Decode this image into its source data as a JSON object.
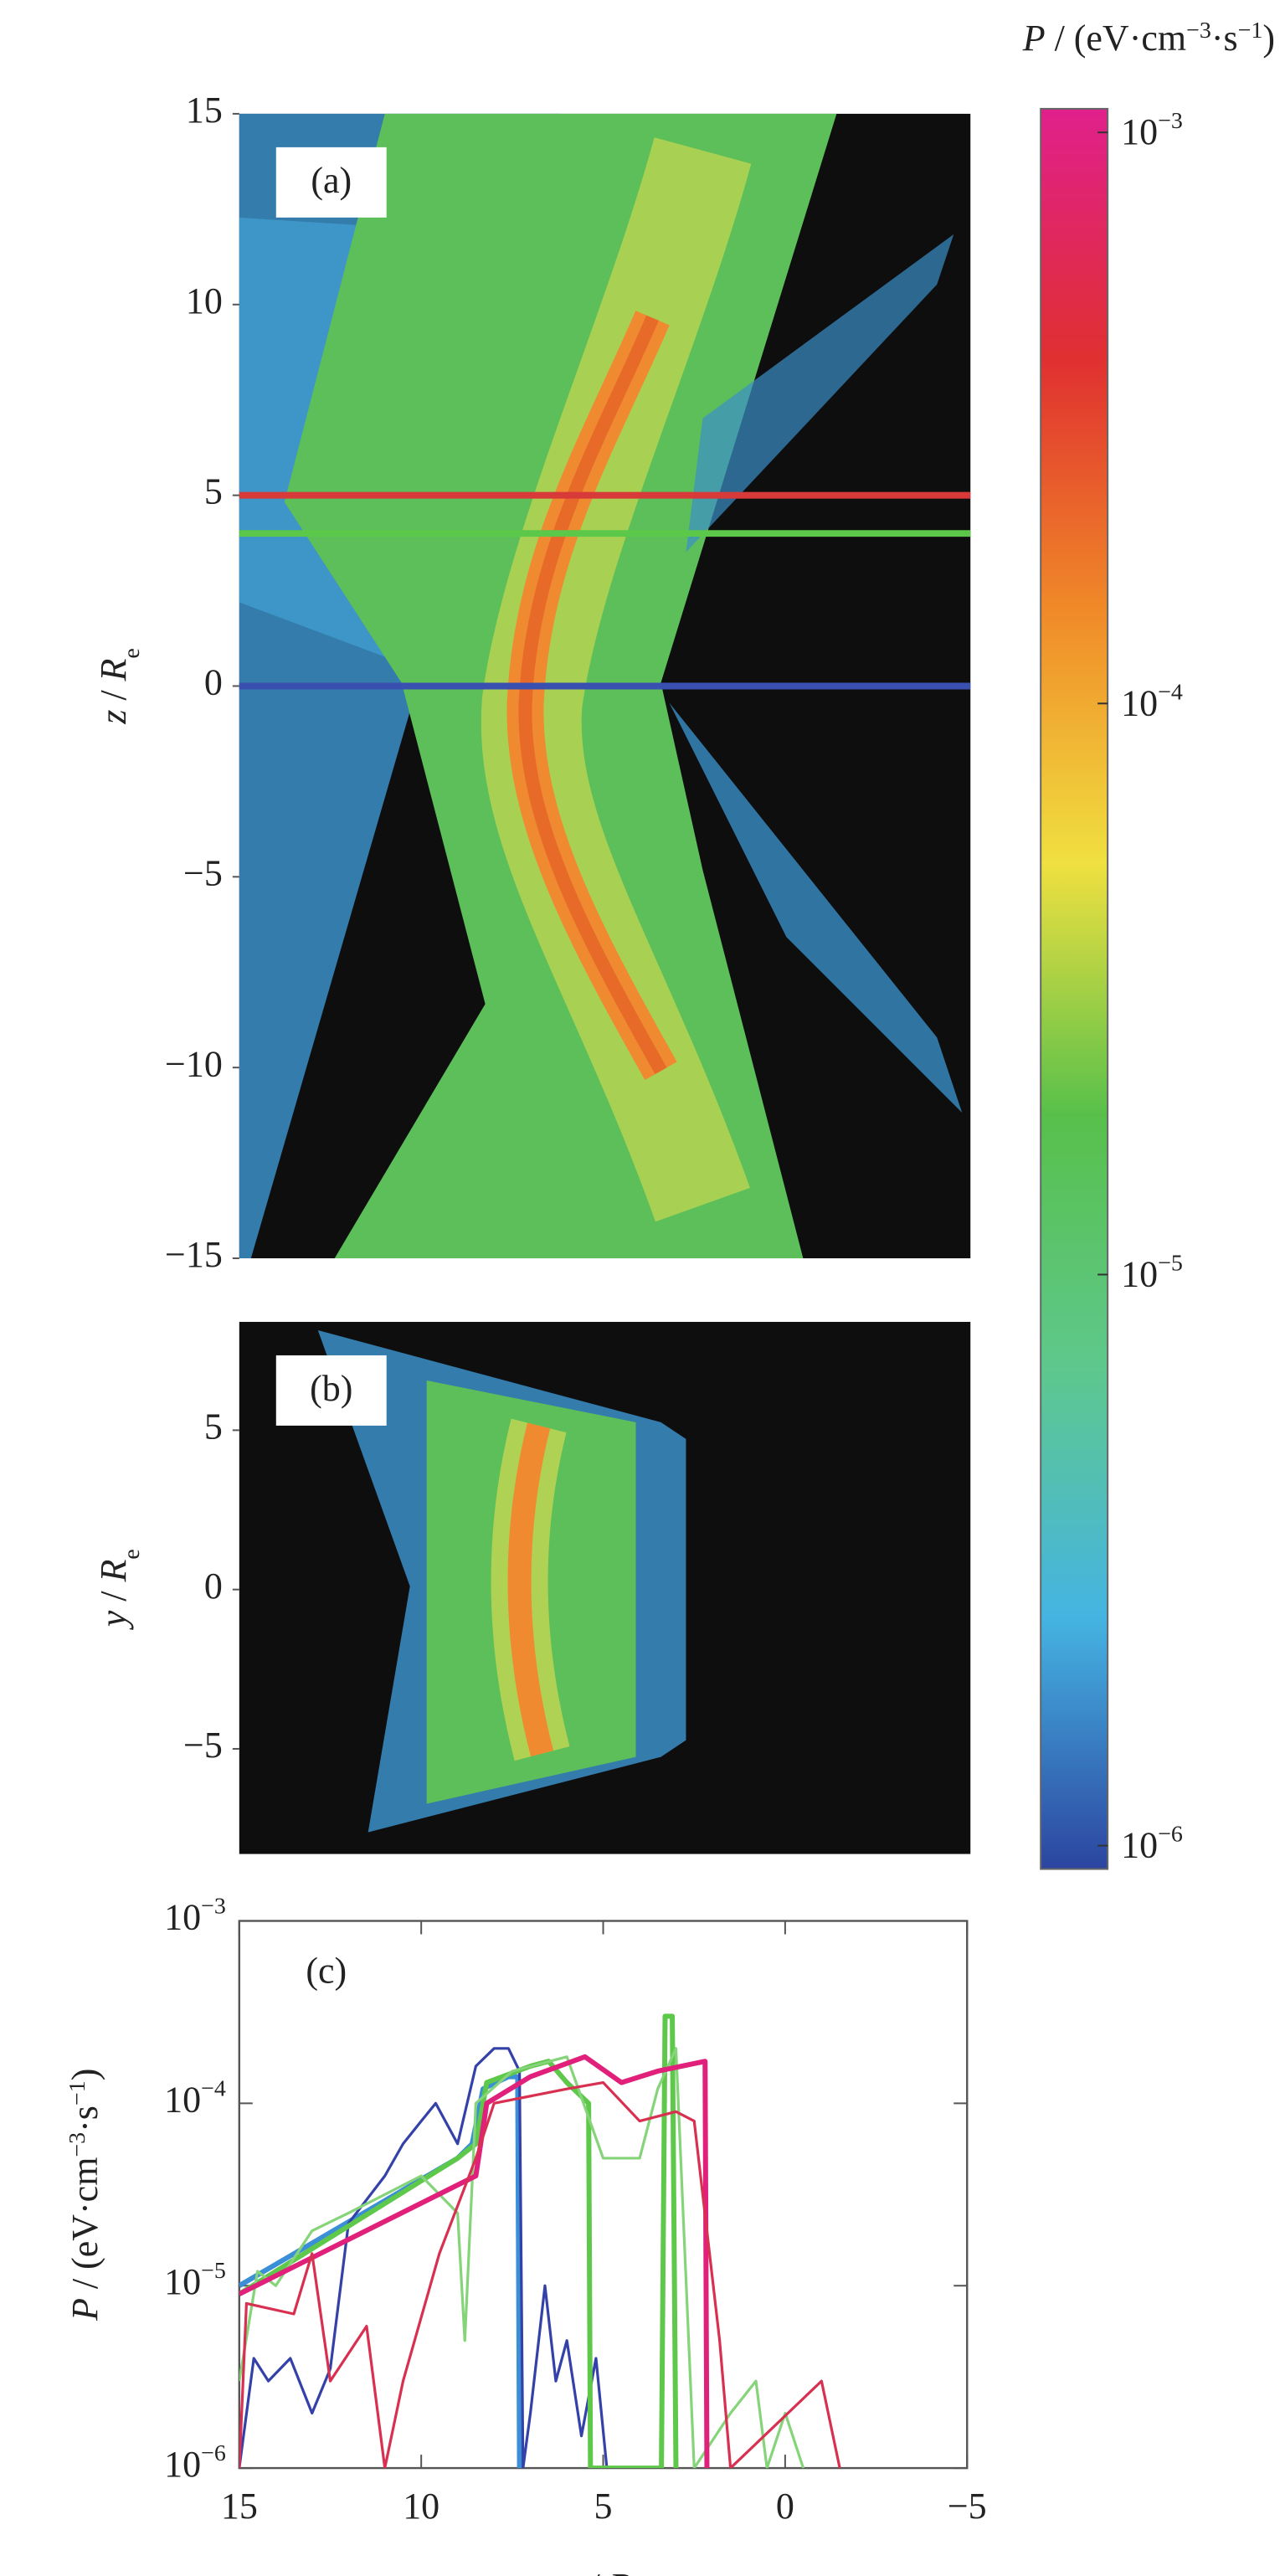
{
  "chart_data": [
    {
      "type": "heatmap",
      "label": "(a)",
      "ylabel": [
        "z",
        " / ",
        "R",
        "e"
      ],
      "xlim": [
        15,
        -5
      ],
      "ylim": [
        -15,
        15
      ],
      "yticks": [
        {
          "value": -15,
          "label": "−15"
        },
        {
          "value": -10,
          "label": "−10"
        },
        {
          "value": -5,
          "label": "−5"
        },
        0,
        5,
        10,
        15
      ],
      "cuts": [
        {
          "value": 5,
          "color": "#d83a3a"
        },
        {
          "value": 4,
          "color": "#5cc84a"
        },
        {
          "value": 0,
          "color": "#3a50b0"
        }
      ]
    },
    {
      "type": "heatmap",
      "label": "(b)",
      "ylabel": [
        "y",
        " / ",
        "R",
        "e"
      ],
      "xlim": [
        15,
        -5
      ],
      "ylim": [
        -8.3,
        8.4
      ],
      "yticks": [
        {
          "value": -5,
          "label": "−5"
        },
        0,
        5
      ]
    },
    {
      "type": "line",
      "label": "(c)",
      "ylabel": [
        "P",
        " / (eV·cm",
        "−3",
        "·s",
        "−1",
        ")"
      ],
      "xlabel": [
        "x",
        " / ",
        "R",
        "e"
      ],
      "xlim": [
        15,
        -5
      ],
      "xticks": [
        15,
        10,
        5,
        0,
        {
          "value": -5,
          "label": "−5"
        }
      ],
      "ylim": [
        1e-06,
        0.001
      ],
      "log": true,
      "yticks": [
        {
          "value": 1e-06,
          "label": [
            "10",
            "−6"
          ]
        },
        {
          "value": 1e-05,
          "label": [
            "10",
            "−5"
          ]
        },
        {
          "value": 0.0001,
          "label": [
            "10",
            "−4"
          ]
        },
        {
          "value": 0.001,
          "label": [
            "10",
            "−3"
          ]
        }
      ],
      "series": [
        {
          "color": "#3a8fd6",
          "linewidth": 3,
          "x": [
            15,
            9,
            8.6,
            8.3,
            7.6,
            7.35,
            7.3
          ],
          "values": [
            1e-05,
            5e-05,
            6e-05,
            0.00012,
            0.00014,
            0.00014,
            1e-06
          ]
        },
        {
          "color": "#3441a8",
          "linewidth": 1.6,
          "x": [
            15,
            14.6,
            14.2,
            13.6,
            13,
            12.5,
            12,
            11,
            10.5,
            10,
            9.6,
            9,
            8.5,
            8,
            7.6,
            7.3,
            7.2,
            7,
            6.6,
            6.3,
            6,
            5.6,
            5.2,
            4.9
          ],
          "values": [
            1e-06,
            4e-06,
            3e-06,
            4e-06,
            2e-06,
            3.5e-06,
            2.2e-05,
            4e-05,
            6e-05,
            8e-05,
            0.0001,
            6e-05,
            0.00016,
            0.0002,
            0.0002,
            0.00015,
            1e-06,
            2e-06,
            1e-05,
            3e-06,
            5e-06,
            1.5e-06,
            4e-06,
            1e-06
          ]
        },
        {
          "color": "#5ec84a",
          "linewidth": 3,
          "x": [
            15,
            9,
            8.5,
            8.2,
            7,
            6.5,
            6,
            5.4,
            5.35,
            3.4,
            3.3,
            3.1,
            3.0
          ],
          "values": [
            9e-06,
            5e-05,
            6e-05,
            0.00013,
            0.00016,
            0.00017,
            0.00013,
            0.0001,
            1e-06,
            1e-06,
            0.0003,
            0.0003,
            1e-06
          ]
        },
        {
          "color": "#86d47a",
          "linewidth": 1.6,
          "x": [
            15,
            14.5,
            14,
            13,
            12,
            10,
            9,
            8.8,
            8.5,
            7.5,
            6,
            5,
            4,
            3.5,
            3,
            2.5,
            1.5,
            0.8,
            0.5,
            0,
            -0.5
          ],
          "values": [
            3e-06,
            1.2e-05,
            1e-05,
            2e-05,
            2.5e-05,
            4e-05,
            2.5e-05,
            5e-06,
            0.0001,
            0.00015,
            0.00018,
            5e-05,
            5e-05,
            0.00012,
            0.0002,
            1e-06,
            2e-06,
            3e-06,
            1e-06,
            2e-06,
            1e-06
          ]
        },
        {
          "color": "#e0207a",
          "linewidth": 3,
          "x": [
            15,
            8.5,
            8.2,
            7,
            5.5,
            4.5,
            3.5,
            2.2,
            2.15
          ],
          "values": [
            9e-06,
            4e-05,
            0.0001,
            0.00014,
            0.00018,
            0.00013,
            0.00015,
            0.00017,
            1e-06
          ]
        },
        {
          "color": "#d83050",
          "linewidth": 1.6,
          "x": [
            15,
            14.8,
            13.5,
            13,
            12.5,
            11.5,
            11,
            10.5,
            9.5,
            8.5,
            8,
            6,
            5,
            4,
            3,
            2.5,
            1.8,
            1.5,
            -1,
            -1.5
          ],
          "values": [
            1e-06,
            8e-06,
            7e-06,
            1.5e-05,
            3e-06,
            6e-06,
            1e-06,
            3e-06,
            1.5e-05,
            5e-05,
            0.0001,
            0.00012,
            0.00013,
            8e-05,
            9e-05,
            8e-05,
            5e-06,
            1e-06,
            3e-06,
            1e-06
          ]
        }
      ]
    },
    {
      "type": "colorbar",
      "label": [
        "P",
        " / (eV·cm",
        "−3",
        "·s",
        "−1",
        ")"
      ],
      "clim": [
        9.1e-07,
        0.0011
      ],
      "log": true,
      "ticks": [
        {
          "value": 1e-06,
          "label": [
            "10",
            "−6"
          ]
        },
        {
          "value": 1e-05,
          "label": [
            "10",
            "−5"
          ]
        },
        {
          "value": 0.0001,
          "label": [
            "10",
            "−4"
          ]
        },
        {
          "value": 0.001,
          "label": [
            "10",
            "−3"
          ]
        }
      ],
      "colors": [
        "#2c45a0",
        "#45b4e2",
        "#5ec88c",
        "#58c04a",
        "#f0e040",
        "#f08a28",
        "#e03030",
        "#e0208c"
      ]
    }
  ]
}
